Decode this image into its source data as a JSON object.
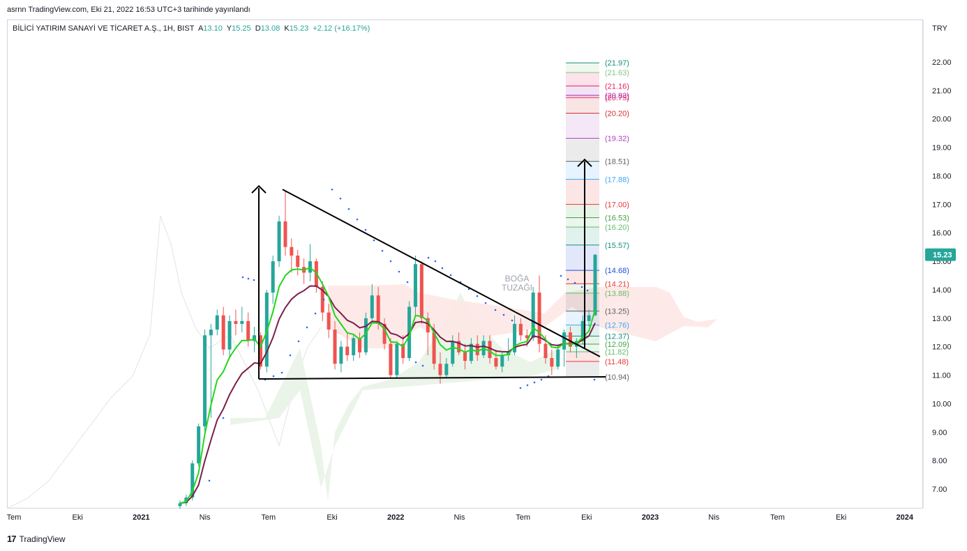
{
  "header": {
    "credit": "asrnn TradingView.com, Eki 21, 2022 16:53 UTC+3 tarihinde yayınlandı"
  },
  "legend": {
    "symbol": "BİLİCİ YATIRIM SANAYİ VE TİCARET A.Ş., 1H, BIST",
    "open_label": "A",
    "open": "13.10",
    "high_label": "Y",
    "high": "15.25",
    "low_label": "D",
    "low": "13.08",
    "close_label": "K",
    "close": "15.23",
    "change": "+2.12 (+16.17%)"
  },
  "footer": {
    "brand": "TradingView"
  },
  "chart_data": {
    "type": "candlestick",
    "currency": "TRY",
    "y_axis_ticks": [
      "7.00",
      "8.00",
      "9.00",
      "10.00",
      "11.00",
      "12.00",
      "13.00",
      "14.00",
      "15.00",
      "16.00",
      "17.00",
      "18.00",
      "19.00",
      "20.00",
      "21.00",
      "22.00"
    ],
    "ylim": [
      6.4,
      23.4
    ],
    "x_axis_ticks": [
      "Tem",
      "Eki",
      "2021",
      "Nis",
      "Tem",
      "Eki",
      "2022",
      "Nis",
      "Tem",
      "Eki",
      "2023",
      "Nis",
      "Tem",
      "Eki",
      "2024"
    ],
    "last_price": "15.23",
    "annotation": "BOĞA TUZAĞI",
    "fib_levels": [
      {
        "label": "(21.97)",
        "value": 21.97,
        "color": "#138f7e"
      },
      {
        "label": "(21.63)",
        "value": 21.63,
        "color": "#81c784"
      },
      {
        "label": "(21.16)",
        "value": 21.16,
        "color": "#e91e63"
      },
      {
        "label": "(20.83)",
        "value": 20.83,
        "color": "#9c27b0"
      },
      {
        "label": "(20.75)",
        "value": 20.75,
        "color": "#e91e63"
      },
      {
        "label": "(20.20)",
        "value": 20.2,
        "color": "#d32f2f"
      },
      {
        "label": "(19.32)",
        "value": 19.32,
        "color": "#ab47bc"
      },
      {
        "label": "(18.51)",
        "value": 18.51,
        "color": "#616161"
      },
      {
        "label": "(17.88)",
        "value": 17.88,
        "color": "#42a5f5"
      },
      {
        "label": "(17.00)",
        "value": 17.0,
        "color": "#e53935"
      },
      {
        "label": "(16.53)",
        "value": 16.53,
        "color": "#43a047"
      },
      {
        "label": "(16.20)",
        "value": 16.2,
        "color": "#66bb6a"
      },
      {
        "label": "(15.57)",
        "value": 15.57,
        "color": "#138f7e"
      },
      {
        "label": "(14.68)",
        "value": 14.68,
        "color": "#1e4fd8"
      },
      {
        "label": "(14.21)",
        "value": 14.21,
        "color": "#e53935"
      },
      {
        "label": "(13.88)",
        "value": 13.88,
        "color": "#66bb6a"
      },
      {
        "label": "(13.25)",
        "value": 13.25,
        "color": "#616161"
      },
      {
        "label": "(12.76)",
        "value": 12.76,
        "color": "#42a5f5"
      },
      {
        "label": "(12.37)",
        "value": 12.37,
        "color": "#138f7e"
      },
      {
        "label": "(12.09)",
        "value": 12.09,
        "color": "#43a047"
      },
      {
        "label": "(11.82)",
        "value": 11.82,
        "color": "#66bb6a"
      },
      {
        "label": "(11.48)",
        "value": 11.48,
        "color": "#e53935"
      },
      {
        "label": "(10.94)",
        "value": 10.94,
        "color": "#616161"
      }
    ],
    "candles": [
      {
        "o": 6.4,
        "h": 6.6,
        "l": 6.3,
        "c": 6.5
      },
      {
        "o": 6.5,
        "h": 6.8,
        "l": 6.4,
        "c": 6.7
      },
      {
        "o": 6.7,
        "h": 8.0,
        "l": 6.6,
        "c": 7.9
      },
      {
        "o": 7.9,
        "h": 9.3,
        "l": 7.8,
        "c": 9.2
      },
      {
        "o": 9.2,
        "h": 12.6,
        "l": 9.0,
        "c": 12.4
      },
      {
        "o": 12.4,
        "h": 12.8,
        "l": 9.5,
        "c": 12.6
      },
      {
        "o": 12.6,
        "h": 13.3,
        "l": 12.4,
        "c": 13.1
      },
      {
        "o": 13.1,
        "h": 13.4,
        "l": 11.7,
        "c": 11.9
      },
      {
        "o": 11.9,
        "h": 13.1,
        "l": 11.6,
        "c": 12.9
      },
      {
        "o": 12.9,
        "h": 13.3,
        "l": 12.4,
        "c": 12.8
      },
      {
        "o": 12.8,
        "h": 13.4,
        "l": 12.5,
        "c": 12.9
      },
      {
        "o": 12.9,
        "h": 13.2,
        "l": 12.0,
        "c": 12.2
      },
      {
        "o": 12.2,
        "h": 12.7,
        "l": 11.8,
        "c": 12.4
      },
      {
        "o": 12.4,
        "h": 12.5,
        "l": 11.2,
        "c": 11.3
      },
      {
        "o": 11.3,
        "h": 14.0,
        "l": 11.1,
        "c": 13.9
      },
      {
        "o": 13.9,
        "h": 15.2,
        "l": 13.5,
        "c": 15.0
      },
      {
        "o": 15.0,
        "h": 16.6,
        "l": 14.8,
        "c": 16.4
      },
      {
        "o": 16.4,
        "h": 17.5,
        "l": 15.2,
        "c": 15.5
      },
      {
        "o": 15.5,
        "h": 15.8,
        "l": 14.6,
        "c": 15.2
      },
      {
        "o": 15.2,
        "h": 15.4,
        "l": 14.5,
        "c": 14.8
      },
      {
        "o": 14.8,
        "h": 15.1,
        "l": 14.2,
        "c": 14.6
      },
      {
        "o": 14.6,
        "h": 15.6,
        "l": 14.3,
        "c": 15.0
      },
      {
        "o": 15.0,
        "h": 15.1,
        "l": 13.9,
        "c": 14.1
      },
      {
        "o": 14.1,
        "h": 14.3,
        "l": 12.9,
        "c": 13.2
      },
      {
        "o": 13.2,
        "h": 13.5,
        "l": 12.3,
        "c": 12.6
      },
      {
        "o": 12.6,
        "h": 12.9,
        "l": 11.2,
        "c": 11.4
      },
      {
        "o": 11.4,
        "h": 12.2,
        "l": 11.1,
        "c": 12.0
      },
      {
        "o": 12.0,
        "h": 12.5,
        "l": 11.5,
        "c": 11.7
      },
      {
        "o": 11.7,
        "h": 12.4,
        "l": 11.5,
        "c": 12.3
      },
      {
        "o": 12.3,
        "h": 12.5,
        "l": 11.6,
        "c": 11.8
      },
      {
        "o": 11.8,
        "h": 13.2,
        "l": 11.7,
        "c": 13.0
      },
      {
        "o": 13.0,
        "h": 14.2,
        "l": 12.8,
        "c": 13.8
      },
      {
        "o": 13.8,
        "h": 14.1,
        "l": 12.6,
        "c": 12.8
      },
      {
        "o": 12.8,
        "h": 13.0,
        "l": 11.9,
        "c": 12.1
      },
      {
        "o": 12.1,
        "h": 12.3,
        "l": 10.9,
        "c": 11.0
      },
      {
        "o": 11.0,
        "h": 12.2,
        "l": 10.9,
        "c": 12.1
      },
      {
        "o": 12.1,
        "h": 12.4,
        "l": 11.4,
        "c": 11.6
      },
      {
        "o": 11.6,
        "h": 13.6,
        "l": 11.5,
        "c": 13.4
      },
      {
        "o": 13.4,
        "h": 15.2,
        "l": 13.1,
        "c": 14.9
      },
      {
        "o": 14.9,
        "h": 15.0,
        "l": 12.8,
        "c": 13.0
      },
      {
        "o": 13.0,
        "h": 13.2,
        "l": 11.7,
        "c": 12.5
      },
      {
        "o": 12.5,
        "h": 12.8,
        "l": 11.2,
        "c": 11.4
      },
      {
        "o": 11.4,
        "h": 11.8,
        "l": 10.7,
        "c": 11.0
      },
      {
        "o": 11.0,
        "h": 11.6,
        "l": 10.9,
        "c": 11.4
      },
      {
        "o": 11.4,
        "h": 12.4,
        "l": 11.3,
        "c": 12.2
      },
      {
        "o": 12.2,
        "h": 12.5,
        "l": 11.7,
        "c": 11.8
      },
      {
        "o": 11.8,
        "h": 12.1,
        "l": 11.2,
        "c": 11.5
      },
      {
        "o": 11.5,
        "h": 12.3,
        "l": 11.4,
        "c": 12.1
      },
      {
        "o": 12.1,
        "h": 12.4,
        "l": 11.5,
        "c": 11.7
      },
      {
        "o": 11.7,
        "h": 12.4,
        "l": 11.6,
        "c": 12.2
      },
      {
        "o": 12.2,
        "h": 12.4,
        "l": 11.4,
        "c": 11.6
      },
      {
        "o": 11.6,
        "h": 11.9,
        "l": 11.2,
        "c": 11.3
      },
      {
        "o": 11.3,
        "h": 11.8,
        "l": 11.1,
        "c": 11.7
      },
      {
        "o": 11.7,
        "h": 12.3,
        "l": 11.5,
        "c": 11.8
      },
      {
        "o": 11.8,
        "h": 13.1,
        "l": 11.7,
        "c": 12.8
      },
      {
        "o": 12.8,
        "h": 13.0,
        "l": 12.2,
        "c": 12.4
      },
      {
        "o": 12.4,
        "h": 12.6,
        "l": 12.0,
        "c": 12.3
      },
      {
        "o": 12.3,
        "h": 14.1,
        "l": 12.2,
        "c": 13.9
      },
      {
        "o": 13.9,
        "h": 14.5,
        "l": 11.8,
        "c": 12.1
      },
      {
        "o": 12.1,
        "h": 12.4,
        "l": 11.4,
        "c": 11.6
      },
      {
        "o": 11.6,
        "h": 11.9,
        "l": 11.0,
        "c": 11.3
      },
      {
        "o": 11.3,
        "h": 12.1,
        "l": 11.2,
        "c": 11.9
      },
      {
        "o": 11.9,
        "h": 12.6,
        "l": 11.3,
        "c": 12.5
      },
      {
        "o": 12.5,
        "h": 12.7,
        "l": 11.8,
        "c": 12.0
      },
      {
        "o": 12.0,
        "h": 12.3,
        "l": 11.6,
        "c": 12.2
      },
      {
        "o": 12.2,
        "h": 13.1,
        "l": 12.1,
        "c": 12.9
      },
      {
        "o": 12.9,
        "h": 13.3,
        "l": 12.7,
        "c": 13.1
      },
      {
        "o": 13.1,
        "h": 15.25,
        "l": 13.08,
        "c": 15.23
      }
    ]
  }
}
